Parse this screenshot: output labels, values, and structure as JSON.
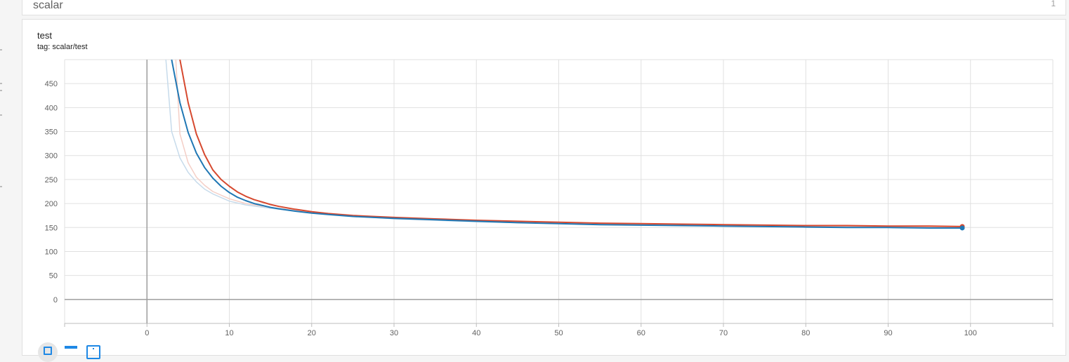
{
  "group": {
    "title": "scalar",
    "count": "1"
  },
  "card": {
    "title": "test",
    "tag": "tag: scalar/test"
  },
  "toolbar": {
    "icons": [
      "fit-domain-icon",
      "log-scale-icon",
      "info-icon"
    ]
  },
  "colors": {
    "accent": "#1e88e5",
    "series_a": "#1f77b4",
    "series_b": "#d6492f",
    "series_a_raw": "#c7dbeb",
    "series_b_raw": "#f4cfc7"
  },
  "chart_data": {
    "type": "line",
    "title": "test",
    "subtitle": "tag: scalar/test",
    "xlabel": "",
    "ylabel": "",
    "xlim": [
      -10,
      110
    ],
    "ylim": [
      -50,
      500
    ],
    "x_ticks": [
      0,
      10,
      20,
      30,
      40,
      50,
      60,
      70,
      80,
      90,
      100
    ],
    "y_ticks": [
      0,
      50,
      100,
      150,
      200,
      250,
      300,
      350,
      400,
      450
    ],
    "grid": true,
    "series": [
      {
        "color": "#d6492f",
        "role": "smoothed",
        "x": [
          4,
          5,
          6,
          7,
          8,
          9,
          10,
          11,
          12,
          13,
          14,
          15,
          16,
          18,
          20,
          22,
          25,
          30,
          35,
          40,
          45,
          50,
          55,
          60,
          65,
          70,
          75,
          80,
          85,
          90,
          95,
          99
        ],
        "values": [
          500,
          410,
          345,
          302,
          270,
          250,
          236,
          224,
          215,
          208,
          203,
          198,
          194,
          188,
          183,
          179,
          175,
          171,
          168,
          165,
          163,
          161,
          159,
          158,
          157,
          156,
          155,
          154,
          154,
          153,
          153,
          152
        ]
      },
      {
        "color": "#1f77b4",
        "role": "smoothed",
        "x": [
          3,
          4,
          5,
          6,
          7,
          8,
          9,
          10,
          11,
          12,
          13,
          14,
          15,
          16,
          18,
          20,
          22,
          25,
          30,
          35,
          40,
          45,
          50,
          55,
          60,
          65,
          70,
          75,
          80,
          85,
          90,
          95,
          99
        ],
        "values": [
          500,
          410,
          348,
          305,
          275,
          253,
          236,
          223,
          213,
          206,
          200,
          196,
          192,
          189,
          184,
          180,
          177,
          173,
          169,
          166,
          163,
          160,
          158,
          156,
          155,
          154,
          153,
          152,
          151,
          150,
          150,
          149,
          149
        ]
      },
      {
        "color": "#f4cfc7",
        "role": "raw",
        "x": [
          3.5,
          4,
          5,
          6,
          7,
          8,
          10,
          12,
          15,
          20,
          30,
          40,
          50,
          60,
          70,
          80,
          90,
          99
        ],
        "values": [
          500,
          345,
          285,
          255,
          238,
          225,
          210,
          200,
          192,
          182,
          170,
          163,
          159,
          156,
          154,
          153,
          152,
          151
        ]
      },
      {
        "color": "#c7dbeb",
        "role": "raw",
        "x": [
          2.3,
          3,
          4,
          5,
          6,
          7,
          8,
          10,
          12,
          15,
          20,
          30,
          40,
          50,
          60,
          70,
          80,
          90,
          99
        ],
        "values": [
          500,
          350,
          295,
          265,
          245,
          230,
          220,
          205,
          197,
          190,
          180,
          168,
          162,
          158,
          155,
          153,
          151,
          150,
          149
        ]
      }
    ],
    "end_markers": [
      {
        "x": 99,
        "y": 152,
        "color": "#d6492f"
      },
      {
        "x": 99,
        "y": 149,
        "color": "#1f77b4"
      }
    ]
  }
}
